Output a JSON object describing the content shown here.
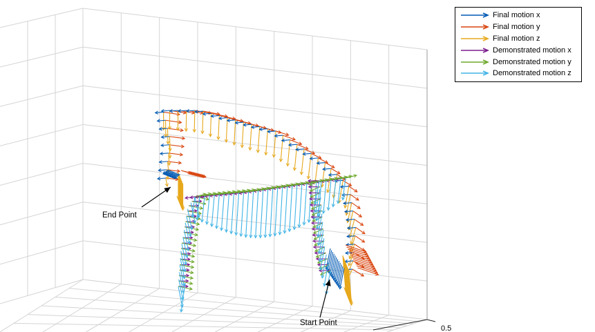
{
  "chart_data": {
    "type": "quiver3d",
    "grid": true,
    "legend_position": "top-right",
    "series": [
      {
        "name": "Final motion x",
        "color": "#0059b3"
      },
      {
        "name": "Final motion y",
        "color": "#d9440e"
      },
      {
        "name": "Final motion z",
        "color": "#e7a81c"
      },
      {
        "name": "Demonstrated motion x",
        "color": "#7b1c8e"
      },
      {
        "name": "Demonstrated motion y",
        "color": "#6ea82d"
      },
      {
        "name": "Demonstrated motion z",
        "color": "#40b4e6"
      }
    ],
    "annotations": [
      {
        "label": "End Point"
      },
      {
        "label": "Start Point"
      }
    ],
    "tick_labels": [
      "0.5"
    ]
  }
}
